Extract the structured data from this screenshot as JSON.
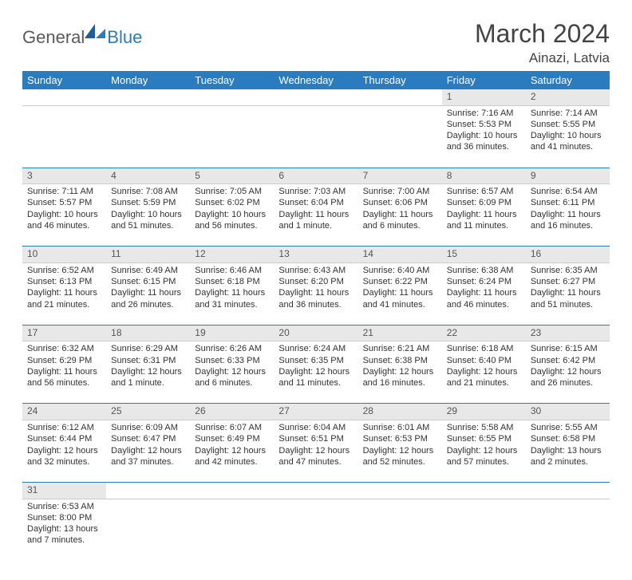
{
  "brand": {
    "part1": "General",
    "part2": "Blue"
  },
  "title": "March 2024",
  "location": "Ainazi, Latvia",
  "colors": {
    "header_bg": "#2b7bbf",
    "header_fg": "#ffffff",
    "daynum_bg": "#e8e8e8",
    "rule": "#2b7bbf",
    "text": "#333333"
  },
  "weekday_labels": [
    "Sunday",
    "Monday",
    "Tuesday",
    "Wednesday",
    "Thursday",
    "Friday",
    "Saturday"
  ],
  "weeks": [
    [
      null,
      null,
      null,
      null,
      null,
      {
        "n": "1",
        "sr": "Sunrise: 7:16 AM",
        "ss": "Sunset: 5:53 PM",
        "d1": "Daylight: 10 hours",
        "d2": "and 36 minutes."
      },
      {
        "n": "2",
        "sr": "Sunrise: 7:14 AM",
        "ss": "Sunset: 5:55 PM",
        "d1": "Daylight: 10 hours",
        "d2": "and 41 minutes."
      }
    ],
    [
      {
        "n": "3",
        "sr": "Sunrise: 7:11 AM",
        "ss": "Sunset: 5:57 PM",
        "d1": "Daylight: 10 hours",
        "d2": "and 46 minutes."
      },
      {
        "n": "4",
        "sr": "Sunrise: 7:08 AM",
        "ss": "Sunset: 5:59 PM",
        "d1": "Daylight: 10 hours",
        "d2": "and 51 minutes."
      },
      {
        "n": "5",
        "sr": "Sunrise: 7:05 AM",
        "ss": "Sunset: 6:02 PM",
        "d1": "Daylight: 10 hours",
        "d2": "and 56 minutes."
      },
      {
        "n": "6",
        "sr": "Sunrise: 7:03 AM",
        "ss": "Sunset: 6:04 PM",
        "d1": "Daylight: 11 hours",
        "d2": "and 1 minute."
      },
      {
        "n": "7",
        "sr": "Sunrise: 7:00 AM",
        "ss": "Sunset: 6:06 PM",
        "d1": "Daylight: 11 hours",
        "d2": "and 6 minutes."
      },
      {
        "n": "8",
        "sr": "Sunrise: 6:57 AM",
        "ss": "Sunset: 6:09 PM",
        "d1": "Daylight: 11 hours",
        "d2": "and 11 minutes."
      },
      {
        "n": "9",
        "sr": "Sunrise: 6:54 AM",
        "ss": "Sunset: 6:11 PM",
        "d1": "Daylight: 11 hours",
        "d2": "and 16 minutes."
      }
    ],
    [
      {
        "n": "10",
        "sr": "Sunrise: 6:52 AM",
        "ss": "Sunset: 6:13 PM",
        "d1": "Daylight: 11 hours",
        "d2": "and 21 minutes."
      },
      {
        "n": "11",
        "sr": "Sunrise: 6:49 AM",
        "ss": "Sunset: 6:15 PM",
        "d1": "Daylight: 11 hours",
        "d2": "and 26 minutes."
      },
      {
        "n": "12",
        "sr": "Sunrise: 6:46 AM",
        "ss": "Sunset: 6:18 PM",
        "d1": "Daylight: 11 hours",
        "d2": "and 31 minutes."
      },
      {
        "n": "13",
        "sr": "Sunrise: 6:43 AM",
        "ss": "Sunset: 6:20 PM",
        "d1": "Daylight: 11 hours",
        "d2": "and 36 minutes."
      },
      {
        "n": "14",
        "sr": "Sunrise: 6:40 AM",
        "ss": "Sunset: 6:22 PM",
        "d1": "Daylight: 11 hours",
        "d2": "and 41 minutes."
      },
      {
        "n": "15",
        "sr": "Sunrise: 6:38 AM",
        "ss": "Sunset: 6:24 PM",
        "d1": "Daylight: 11 hours",
        "d2": "and 46 minutes."
      },
      {
        "n": "16",
        "sr": "Sunrise: 6:35 AM",
        "ss": "Sunset: 6:27 PM",
        "d1": "Daylight: 11 hours",
        "d2": "and 51 minutes."
      }
    ],
    [
      {
        "n": "17",
        "sr": "Sunrise: 6:32 AM",
        "ss": "Sunset: 6:29 PM",
        "d1": "Daylight: 11 hours",
        "d2": "and 56 minutes."
      },
      {
        "n": "18",
        "sr": "Sunrise: 6:29 AM",
        "ss": "Sunset: 6:31 PM",
        "d1": "Daylight: 12 hours",
        "d2": "and 1 minute."
      },
      {
        "n": "19",
        "sr": "Sunrise: 6:26 AM",
        "ss": "Sunset: 6:33 PM",
        "d1": "Daylight: 12 hours",
        "d2": "and 6 minutes."
      },
      {
        "n": "20",
        "sr": "Sunrise: 6:24 AM",
        "ss": "Sunset: 6:35 PM",
        "d1": "Daylight: 12 hours",
        "d2": "and 11 minutes."
      },
      {
        "n": "21",
        "sr": "Sunrise: 6:21 AM",
        "ss": "Sunset: 6:38 PM",
        "d1": "Daylight: 12 hours",
        "d2": "and 16 minutes."
      },
      {
        "n": "22",
        "sr": "Sunrise: 6:18 AM",
        "ss": "Sunset: 6:40 PM",
        "d1": "Daylight: 12 hours",
        "d2": "and 21 minutes."
      },
      {
        "n": "23",
        "sr": "Sunrise: 6:15 AM",
        "ss": "Sunset: 6:42 PM",
        "d1": "Daylight: 12 hours",
        "d2": "and 26 minutes."
      }
    ],
    [
      {
        "n": "24",
        "sr": "Sunrise: 6:12 AM",
        "ss": "Sunset: 6:44 PM",
        "d1": "Daylight: 12 hours",
        "d2": "and 32 minutes."
      },
      {
        "n": "25",
        "sr": "Sunrise: 6:09 AM",
        "ss": "Sunset: 6:47 PM",
        "d1": "Daylight: 12 hours",
        "d2": "and 37 minutes."
      },
      {
        "n": "26",
        "sr": "Sunrise: 6:07 AM",
        "ss": "Sunset: 6:49 PM",
        "d1": "Daylight: 12 hours",
        "d2": "and 42 minutes."
      },
      {
        "n": "27",
        "sr": "Sunrise: 6:04 AM",
        "ss": "Sunset: 6:51 PM",
        "d1": "Daylight: 12 hours",
        "d2": "and 47 minutes."
      },
      {
        "n": "28",
        "sr": "Sunrise: 6:01 AM",
        "ss": "Sunset: 6:53 PM",
        "d1": "Daylight: 12 hours",
        "d2": "and 52 minutes."
      },
      {
        "n": "29",
        "sr": "Sunrise: 5:58 AM",
        "ss": "Sunset: 6:55 PM",
        "d1": "Daylight: 12 hours",
        "d2": "and 57 minutes."
      },
      {
        "n": "30",
        "sr": "Sunrise: 5:55 AM",
        "ss": "Sunset: 6:58 PM",
        "d1": "Daylight: 13 hours",
        "d2": "and 2 minutes."
      }
    ],
    [
      {
        "n": "31",
        "sr": "Sunrise: 6:53 AM",
        "ss": "Sunset: 8:00 PM",
        "d1": "Daylight: 13 hours",
        "d2": "and 7 minutes."
      },
      null,
      null,
      null,
      null,
      null,
      null
    ]
  ]
}
